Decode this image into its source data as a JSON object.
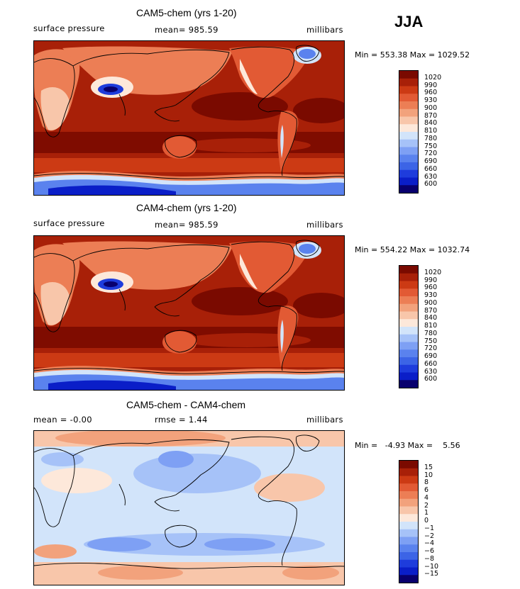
{
  "season": "JJA",
  "panels": [
    {
      "title": "CAM5-chem (yrs 1-20)",
      "left_label": "surface pressure",
      "mid_label": "mean= 985.59",
      "right_label": "millibars",
      "stats": "Min = 553.38 Max = 1029.52"
    },
    {
      "title": "CAM4-chem (yrs 1-20)",
      "left_label": "surface pressure",
      "mid_label": "mean= 985.59",
      "right_label": "millibars",
      "stats": "Min = 554.22 Max = 1032.74"
    },
    {
      "title": "CAM5-chem - CAM4-chem",
      "left_label": "mean =   -0.00",
      "mid_label": "rmse =    1.44",
      "right_label": "millibars",
      "stats": "Min =   -4.93 Max =    5.56"
    }
  ],
  "chart_data": [
    {
      "type": "heatmap",
      "title": "CAM5-chem (yrs 1-20)",
      "variable": "surface pressure",
      "units": "millibars",
      "mean": 985.59,
      "min": 553.38,
      "max": 1029.52,
      "contour_levels": [
        600,
        630,
        660,
        690,
        720,
        750,
        780,
        810,
        840,
        870,
        900,
        930,
        960,
        990,
        1020
      ],
      "colors": [
        "#08006e",
        "#0a1ec8",
        "#1e3cdc",
        "#3c64e6",
        "#5a82ee",
        "#7ea0f4",
        "#a6c2f8",
        "#d2e4fa",
        "#fde8da",
        "#f8c6aa",
        "#f2a27c",
        "#ec7e55",
        "#e25a34",
        "#cc3a14",
        "#a82008",
        "#7a0a00"
      ]
    },
    {
      "type": "heatmap",
      "title": "CAM4-chem (yrs 1-20)",
      "variable": "surface pressure",
      "units": "millibars",
      "mean": 985.59,
      "min": 554.22,
      "max": 1032.74,
      "contour_levels": [
        600,
        630,
        660,
        690,
        720,
        750,
        780,
        810,
        840,
        870,
        900,
        930,
        960,
        990,
        1020
      ],
      "colors": [
        "#08006e",
        "#0a1ec8",
        "#1e3cdc",
        "#3c64e6",
        "#5a82ee",
        "#7ea0f4",
        "#a6c2f8",
        "#d2e4fa",
        "#fde8da",
        "#f8c6aa",
        "#f2a27c",
        "#ec7e55",
        "#e25a34",
        "#cc3a14",
        "#a82008",
        "#7a0a00"
      ]
    },
    {
      "type": "heatmap",
      "title": "CAM5-chem - CAM4-chem",
      "units": "millibars",
      "mean": -0.0,
      "rmse": 1.44,
      "min": -4.93,
      "max": 5.56,
      "contour_levels": [
        -15,
        -10,
        -8,
        -6,
        -4,
        -2,
        -1,
        0,
        1,
        2,
        4,
        6,
        8,
        10,
        15
      ],
      "colors": [
        "#08006e",
        "#0a1ec8",
        "#1e3cdc",
        "#3c64e6",
        "#5a82ee",
        "#7ea0f4",
        "#a6c2f8",
        "#d2e4fa",
        "#fde8da",
        "#f8c6aa",
        "#f2a27c",
        "#ec7e55",
        "#e25a34",
        "#cc3a14",
        "#a82008",
        "#7a0a00"
      ]
    }
  ]
}
